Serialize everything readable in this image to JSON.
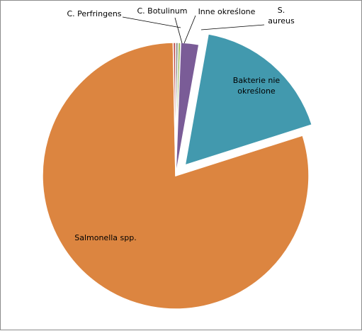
{
  "chart_data": {
    "type": "pie",
    "title": "",
    "slices": [
      {
        "name": "C. Botulinum",
        "label_lines": [
          "C. Botulinum"
        ],
        "value": 0.3,
        "color": "#7f7f7f",
        "explode": 0
      },
      {
        "name": "Inne określone",
        "label_lines": [
          "Inne określone"
        ],
        "value": 0.3,
        "color": "#9bbb59",
        "explode": 0
      },
      {
        "name": "S. aureus",
        "label_lines": [
          "S.",
          "aureus"
        ],
        "value": 2.2,
        "color": "#7a5c97",
        "explode": 0
      },
      {
        "name": "Bakterie nie określone",
        "label_lines": [
          "Bakterie nie",
          "określone"
        ],
        "value": 17.3,
        "color": "#4299ae",
        "explode": 1
      },
      {
        "name": "Salmonella spp.",
        "label_lines": [
          "Salmonella spp."
        ],
        "value": 79.6,
        "color": "#dc8540",
        "explode": 0
      },
      {
        "name": "C. Perfringens",
        "label_lines": [
          "C. Perfringens"
        ],
        "value": 0.3,
        "color": "#c0504d",
        "explode": 0
      }
    ],
    "legend": "none",
    "start_angle_deg": 0,
    "direction": "clockwise",
    "data_labels": "category-name"
  }
}
